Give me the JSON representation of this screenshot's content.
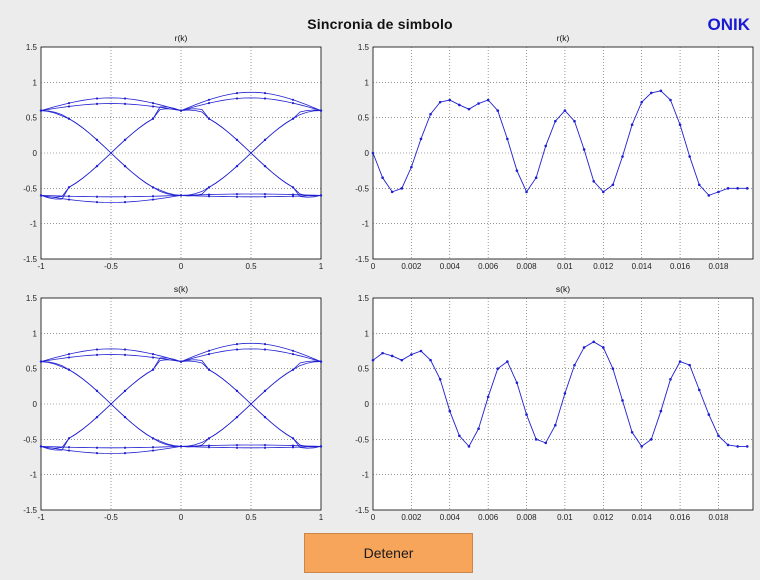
{
  "header": {
    "title": "Sincronia de simbolo",
    "brand": "ONIK"
  },
  "controls": {
    "stop_label": "Detener"
  },
  "colors": {
    "background": "#ececec",
    "trace": "#1f1fd0",
    "button": "#f8a55c",
    "brand": "#1a1ad4"
  },
  "chart_data": [
    {
      "type": "line",
      "id": "eye-r",
      "title": "r(k)",
      "xlim": [
        -1,
        1
      ],
      "ylim": [
        -1.5,
        1.5
      ],
      "x_ticks": [
        "-1",
        "-0.5",
        "0",
        "0.5",
        "1"
      ],
      "y_ticks": [
        "1.5",
        "1",
        "0.5",
        "0",
        "-0.5",
        "-1",
        "-1.5"
      ],
      "grid": true,
      "description_kind": "eye diagram with overlapping symbol traces"
    },
    {
      "type": "line",
      "id": "time-r",
      "title": "r(k)",
      "xlim": [
        0,
        0.0198
      ],
      "ylim": [
        -1.5,
        1.5
      ],
      "x_ticks": [
        "0",
        "0.002",
        "0.004",
        "0.006",
        "0.008",
        "0.01",
        "0.012",
        "0.014",
        "0.016",
        "0.018"
      ],
      "y_ticks": [
        "1.5",
        "1",
        "0.5",
        "0",
        "-0.5",
        "-1",
        "-1.5"
      ],
      "grid": true,
      "series": [
        {
          "x": [
            0,
            0.0005,
            0.001,
            0.0015,
            0.002,
            0.0025,
            0.003,
            0.0035,
            0.004,
            0.0045,
            0.005,
            0.0055,
            0.006,
            0.0065,
            0.007,
            0.0075,
            0.008,
            0.0085,
            0.009,
            0.0095,
            0.01,
            0.0105,
            0.011,
            0.0115,
            0.012,
            0.0125,
            0.013,
            0.0135,
            0.014,
            0.0145,
            0.015,
            0.0155,
            0.016,
            0.0165,
            0.017,
            0.0175,
            0.018,
            0.0185,
            0.019,
            0.0195
          ],
          "y": [
            0.0,
            -0.35,
            -0.55,
            -0.5,
            -0.2,
            0.2,
            0.55,
            0.72,
            0.75,
            0.68,
            0.62,
            0.7,
            0.75,
            0.6,
            0.2,
            -0.25,
            -0.55,
            -0.35,
            0.1,
            0.45,
            0.6,
            0.45,
            0.05,
            -0.4,
            -0.55,
            -0.45,
            -0.05,
            0.4,
            0.72,
            0.85,
            0.88,
            0.75,
            0.4,
            -0.05,
            -0.45,
            -0.6,
            -0.55,
            -0.5,
            -0.5,
            -0.5
          ]
        }
      ]
    },
    {
      "type": "line",
      "id": "eye-s",
      "title": "s(k)",
      "xlim": [
        -1,
        1
      ],
      "ylim": [
        -1.5,
        1.5
      ],
      "x_ticks": [
        "-1",
        "-0.5",
        "0",
        "0.5",
        "1"
      ],
      "y_ticks": [
        "1.5",
        "1",
        "0.5",
        "0",
        "-0.5",
        "-1",
        "-1.5"
      ],
      "grid": true,
      "description_kind": "eye diagram with overlapping symbol traces"
    },
    {
      "type": "line",
      "id": "time-s",
      "title": "s(k)",
      "xlim": [
        0,
        0.0198
      ],
      "ylim": [
        -1.5,
        1.5
      ],
      "x_ticks": [
        "0",
        "0.002",
        "0.004",
        "0.006",
        "0.008",
        "0.01",
        "0.012",
        "0.014",
        "0.016",
        "0.018"
      ],
      "y_ticks": [
        "1.5",
        "1",
        "0.5",
        "0",
        "-0.5",
        "-1",
        "-1.5"
      ],
      "grid": true,
      "series": [
        {
          "x": [
            0,
            0.0005,
            0.001,
            0.0015,
            0.002,
            0.0025,
            0.003,
            0.0035,
            0.004,
            0.0045,
            0.005,
            0.0055,
            0.006,
            0.0065,
            0.007,
            0.0075,
            0.008,
            0.0085,
            0.009,
            0.0095,
            0.01,
            0.0105,
            0.011,
            0.0115,
            0.012,
            0.0125,
            0.013,
            0.0135,
            0.014,
            0.0145,
            0.015,
            0.0155,
            0.016,
            0.0165,
            0.017,
            0.0175,
            0.018,
            0.0185,
            0.019,
            0.0195
          ],
          "y": [
            0.62,
            0.72,
            0.68,
            0.62,
            0.7,
            0.75,
            0.62,
            0.35,
            -0.1,
            -0.45,
            -0.6,
            -0.35,
            0.1,
            0.5,
            0.6,
            0.3,
            -0.15,
            -0.5,
            -0.55,
            -0.3,
            0.15,
            0.55,
            0.8,
            0.88,
            0.8,
            0.5,
            0.05,
            -0.4,
            -0.6,
            -0.5,
            -0.1,
            0.35,
            0.6,
            0.55,
            0.2,
            -0.15,
            -0.45,
            -0.58,
            -0.6,
            -0.6
          ]
        }
      ]
    }
  ]
}
